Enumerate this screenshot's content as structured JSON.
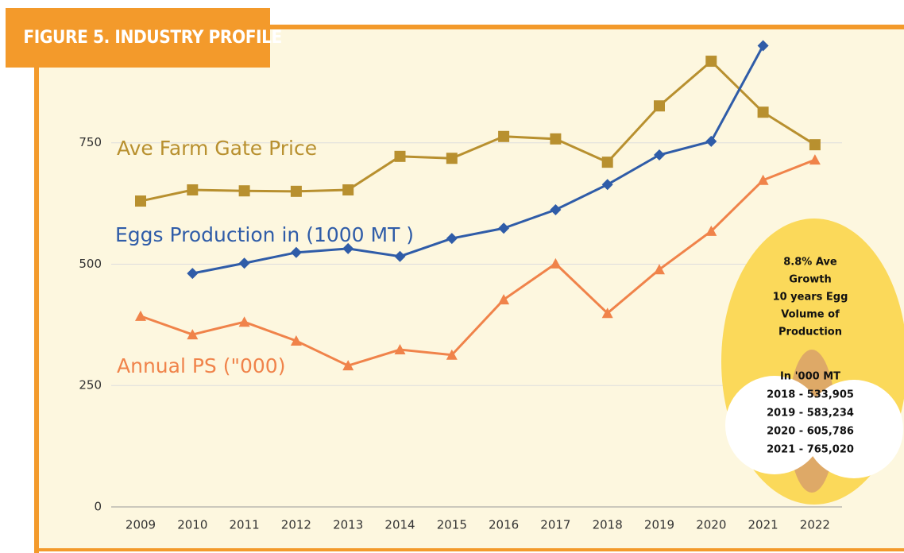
{
  "chart_data": {
    "type": "line",
    "title": "FIGURE 5. INDUSTRY PROFILE",
    "categories": [
      "2009",
      "2010",
      "2011",
      "2012",
      "2013",
      "2014",
      "2015",
      "2016",
      "2017",
      "2018",
      "2019",
      "2020",
      "2021",
      "2022"
    ],
    "series": [
      {
        "name": "Ave Farm Gate Price",
        "color": "#b8902f",
        "marker": "square",
        "values": [
          630,
          653,
          651,
          650,
          653,
          722,
          718,
          763,
          758,
          710,
          826,
          918,
          813,
          746
        ]
      },
      {
        "name": "Eggs Production in (1000 MT )",
        "color": "#2f5ca8",
        "marker": "diamond",
        "values": [
          null,
          481,
          502,
          524,
          532,
          516,
          553,
          574,
          612,
          664,
          725,
          753,
          950,
          null
        ]
      },
      {
        "name": "Annual PS (\"000)",
        "color": "#f0834a",
        "marker": "triangle",
        "values": [
          393,
          355,
          381,
          342,
          291,
          324,
          313,
          427,
          501,
          399,
          489,
          568,
          673,
          715
        ]
      }
    ],
    "ylim": [
      0,
      950
    ],
    "yticks": [
      0,
      250,
      500,
      750
    ],
    "grid": true,
    "annotations": [
      "8.8% Ave",
      "Growth",
      "10 years Egg",
      "Volume of",
      "Production",
      "In '000  MT",
      "2018  -  533,905",
      "2019  -  583,234",
      "2020  -  605,786",
      "2021 - 765,020"
    ]
  }
}
